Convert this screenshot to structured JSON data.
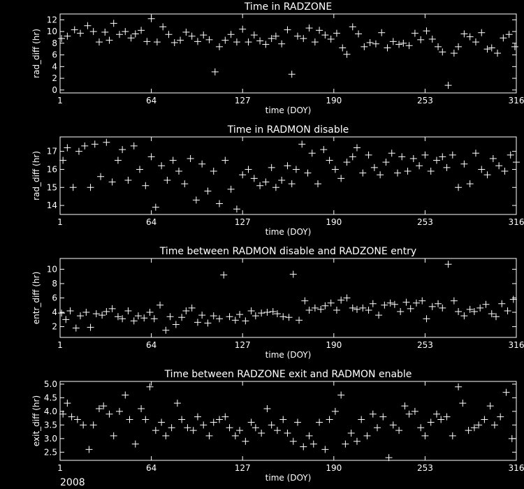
{
  "footer": {
    "year": "2008"
  },
  "colors": {
    "background": "#000000",
    "foreground": "#ffffff"
  },
  "chart_data": [
    {
      "type": "scatter",
      "title": "Time in RADZONE",
      "xlabel": "time (DOY)",
      "ylabel": "rad_diff (hr)",
      "xlim": [
        1,
        316
      ],
      "ylim": [
        -0.5,
        13
      ],
      "xticks": [
        1,
        64,
        127,
        190,
        253,
        316
      ],
      "yticks": [
        0,
        2,
        4,
        6,
        8,
        10,
        12
      ],
      "marker": "plus",
      "x": [
        2,
        6,
        11,
        15,
        20,
        24,
        28,
        32,
        35,
        38,
        42,
        46,
        50,
        53,
        57,
        61,
        64,
        68,
        72,
        76,
        80,
        84,
        88,
        92,
        96,
        100,
        104,
        108,
        111,
        115,
        119,
        123,
        127,
        131,
        135,
        139,
        143,
        147,
        150,
        154,
        158,
        161,
        165,
        169,
        173,
        177,
        180,
        184,
        188,
        192,
        196,
        199,
        203,
        207,
        211,
        215,
        219,
        223,
        227,
        231,
        235,
        238,
        242,
        246,
        250,
        254,
        258,
        262,
        265,
        269,
        273,
        276,
        280,
        284,
        288,
        292,
        296,
        299,
        303,
        307,
        311,
        315
      ],
      "y": [
        8.8,
        9.2,
        10.3,
        9.7,
        11,
        10,
        8.2,
        9.9,
        8.5,
        11.4,
        9.5,
        10,
        8.9,
        9.6,
        10.2,
        8.3,
        12.2,
        8.2,
        10.8,
        9.5,
        8.1,
        8.5,
        9.9,
        9.2,
        8.3,
        9.4,
        8.6,
        3.1,
        7.4,
        8.5,
        9.5,
        8.2,
        10.4,
        8.2,
        9.4,
        8.4,
        7.8,
        8.8,
        9.2,
        7.9,
        10.3,
        2.7,
        9.2,
        8.8,
        10.6,
        8.2,
        10.2,
        9.4,
        8.7,
        9.7,
        7.2,
        6.1,
        10.8,
        9.6,
        7.4,
        8.1,
        7.9,
        9.8,
        7.2,
        8.3,
        7.8,
        8,
        7.6,
        9.7,
        8.6,
        10.1,
        8.7,
        7.4,
        6.5,
        0.8,
        6.3,
        7.4,
        9.6,
        9.1,
        8.2,
        9.8,
        7,
        7.2,
        6.3,
        8.9,
        9.5,
        7.4
      ]
    },
    {
      "type": "scatter",
      "title": "Time in RADMON disable",
      "xlabel": "time (DOY)",
      "ylabel": "rad_diff (hr)",
      "xlim": [
        1,
        316
      ],
      "ylim": [
        13.5,
        17.8
      ],
      "xticks": [
        1,
        64,
        127,
        190,
        253,
        316
      ],
      "yticks": [
        14,
        15,
        16,
        17
      ],
      "marker": "plus",
      "x": [
        3,
        6,
        10,
        14,
        18,
        22,
        25,
        29,
        33,
        37,
        41,
        44,
        48,
        52,
        56,
        60,
        64,
        67,
        71,
        75,
        79,
        83,
        87,
        91,
        95,
        99,
        103,
        107,
        111,
        115,
        119,
        123,
        127,
        131,
        135,
        139,
        143,
        147,
        150,
        154,
        158,
        161,
        164,
        168,
        172,
        175,
        179,
        183,
        187,
        191,
        195,
        199,
        203,
        206,
        210,
        214,
        218,
        222,
        226,
        230,
        234,
        237,
        241,
        245,
        249,
        253,
        257,
        261,
        265,
        268,
        272,
        276,
        280,
        284,
        288,
        292,
        296,
        300,
        304,
        308,
        312,
        316
      ],
      "y": [
        16.5,
        17.2,
        15,
        17,
        17.3,
        15,
        17.4,
        15.6,
        17.5,
        15.3,
        16.5,
        17.1,
        15.4,
        17.3,
        16,
        15.1,
        16.7,
        13.9,
        16.2,
        15.4,
        16.5,
        15.9,
        15.2,
        16.6,
        14.3,
        16.3,
        14.8,
        15.9,
        14.1,
        16.5,
        14.9,
        13.8,
        15.7,
        16,
        15.5,
        15.1,
        15.3,
        16.1,
        15,
        15.4,
        16.2,
        15.2,
        16,
        17.4,
        15.8,
        16.9,
        15.2,
        17.1,
        16.5,
        16,
        15.5,
        16.4,
        16.7,
        17.2,
        15.8,
        16.8,
        16.1,
        15.7,
        16.4,
        16.9,
        15.8,
        16.7,
        15.9,
        16.6,
        16.2,
        16.8,
        15.9,
        16.5,
        16.7,
        16.1,
        16.8,
        15,
        16.3,
        15.2,
        16.9,
        16,
        15.7,
        16.6,
        16.2,
        15.9,
        16.8,
        16.4
      ]
    },
    {
      "type": "scatter",
      "title": "Time between RADMON disable and RADZONE entry",
      "xlabel": "time (DOY)",
      "ylabel": "entr_diff (hr)",
      "xlim": [
        1,
        316
      ],
      "ylim": [
        0.5,
        11.5
      ],
      "xticks": [
        1,
        64,
        127,
        190,
        253,
        316
      ],
      "yticks": [
        2,
        4,
        6,
        8,
        10
      ],
      "marker": "plus",
      "x": [
        2,
        5,
        8,
        12,
        15,
        19,
        22,
        26,
        30,
        33,
        37,
        41,
        44,
        48,
        52,
        55,
        59,
        63,
        66,
        70,
        74,
        77,
        81,
        85,
        88,
        92,
        96,
        99,
        103,
        107,
        111,
        114,
        118,
        122,
        125,
        129,
        133,
        136,
        140,
        144,
        148,
        151,
        155,
        159,
        162,
        166,
        170,
        173,
        177,
        181,
        184,
        188,
        192,
        195,
        199,
        203,
        206,
        210,
        214,
        217,
        221,
        225,
        229,
        232,
        236,
        240,
        243,
        247,
        251,
        254,
        258,
        262,
        265,
        269,
        273,
        276,
        280,
        284,
        287,
        291,
        295,
        299,
        302,
        306,
        310,
        314
      ],
      "y": [
        3.9,
        3,
        4.2,
        1.8,
        3.5,
        4,
        1.9,
        3.8,
        3.6,
        4.1,
        4.5,
        3.4,
        3.1,
        4.2,
        2.8,
        3.5,
        3.2,
        4,
        3.1,
        5,
        1.5,
        3.4,
        2.3,
        3.3,
        4.2,
        4.6,
        2.6,
        3.6,
        2.5,
        3.5,
        3.1,
        9.2,
        3.4,
        2.9,
        3.7,
        2.8,
        4.2,
        3.5,
        3.9,
        4,
        4.1,
        3.8,
        3.4,
        3.3,
        9.3,
        2.9,
        5.6,
        4.3,
        4.6,
        4.4,
        4.9,
        5.3,
        4.3,
        5.7,
        6,
        4.6,
        4.4,
        4.6,
        4.3,
        5.2,
        3.6,
        5,
        5.3,
        5.1,
        4.1,
        5.4,
        4.5,
        5.3,
        5.6,
        3.1,
        4.8,
        5.2,
        4.6,
        10.7,
        5.6,
        4.1,
        3.5,
        4.4,
        4.1,
        4.6,
        5.1,
        3.8,
        3.4,
        5.2,
        4.2,
        5.8
      ]
    },
    {
      "type": "scatter",
      "title": "Time between RADZONE exit and RADMON enable",
      "xlabel": "time (DOY)",
      "ylabel": "exit_diff (hr)",
      "xlim": [
        1,
        316
      ],
      "ylim": [
        2.2,
        5.1
      ],
      "xticks": [
        1,
        64,
        127,
        190,
        253,
        316
      ],
      "yticks": [
        2.5,
        3.0,
        3.5,
        4.0,
        4.5,
        5.0
      ],
      "marker": "plus",
      "x": [
        3,
        6,
        9,
        13,
        17,
        21,
        24,
        28,
        31,
        35,
        38,
        42,
        46,
        49,
        53,
        57,
        60,
        63,
        67,
        71,
        74,
        78,
        82,
        85,
        89,
        93,
        96,
        100,
        104,
        107,
        111,
        115,
        118,
        122,
        125,
        129,
        133,
        136,
        140,
        144,
        147,
        151,
        155,
        158,
        162,
        165,
        169,
        173,
        176,
        180,
        184,
        187,
        191,
        195,
        198,
        202,
        206,
        209,
        213,
        217,
        220,
        224,
        228,
        231,
        235,
        239,
        242,
        246,
        250,
        253,
        257,
        261,
        264,
        268,
        272,
        276,
        279,
        283,
        287,
        290,
        294,
        298,
        301,
        305,
        309,
        313
      ],
      "y": [
        3.9,
        4.3,
        3.8,
        3.7,
        3.5,
        2.6,
        3.5,
        4.1,
        4.2,
        3.9,
        3.1,
        4,
        4.6,
        3.7,
        2.8,
        4.1,
        3.7,
        4.9,
        3.3,
        3.6,
        3.1,
        3.4,
        4.3,
        3.7,
        3.4,
        3.3,
        3.8,
        3.5,
        3.1,
        3.6,
        3.7,
        3.8,
        3.4,
        3.1,
        3.3,
        2.9,
        3.6,
        3.4,
        3.2,
        4.1,
        3.5,
        3.3,
        3.7,
        3.2,
        2.9,
        3.6,
        2.7,
        3.1,
        2.8,
        3.6,
        2.6,
        3.7,
        4,
        4.6,
        2.8,
        3.2,
        2.9,
        3.7,
        3.1,
        3.9,
        3.4,
        3.8,
        2.3,
        3.5,
        3.3,
        4.2,
        3.9,
        4,
        3.4,
        3.1,
        3.6,
        3.9,
        3.7,
        3.8,
        3.1,
        4.9,
        4.3,
        3.3,
        3.4,
        3.5,
        3.7,
        4.2,
        3.5,
        3.8,
        4.7,
        3
      ]
    }
  ]
}
